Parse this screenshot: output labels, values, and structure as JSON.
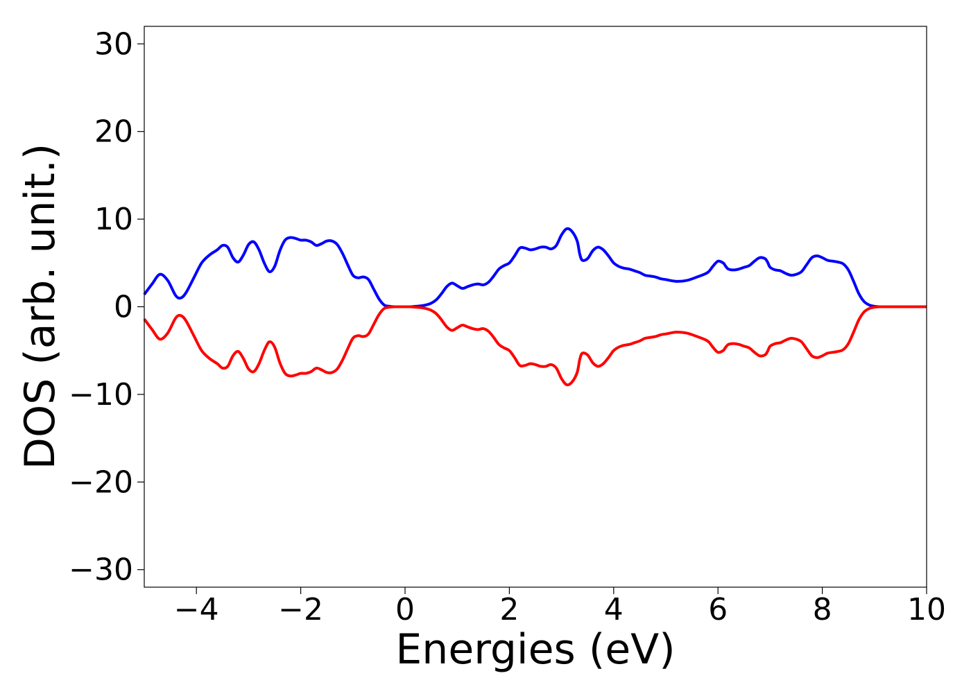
{
  "chart_data": {
    "type": "line",
    "title": "",
    "xlabel": "Energies (eV)",
    "ylabel": "DOS (arb. unit.)",
    "xlim": [
      -5,
      10
    ],
    "ylim": [
      -32,
      32
    ],
    "x_ticks": [
      -4,
      -2,
      0,
      2,
      4,
      6,
      8,
      10
    ],
    "x_tick_labels": [
      "−4",
      "−2",
      "0",
      "2",
      "4",
      "6",
      "8",
      "10"
    ],
    "y_ticks": [
      30,
      20,
      10,
      0,
      -10,
      -20,
      -30
    ],
    "y_tick_labels": [
      "30",
      "20",
      "10",
      "0",
      "−10",
      "−20",
      "−30"
    ],
    "grid": false,
    "legend": "none",
    "x": [
      -5.0,
      -4.85,
      -4.7,
      -4.55,
      -4.4,
      -4.3,
      -4.2,
      -4.05,
      -3.9,
      -3.75,
      -3.6,
      -3.5,
      -3.4,
      -3.3,
      -3.2,
      -3.1,
      -3.0,
      -2.9,
      -2.8,
      -2.7,
      -2.6,
      -2.5,
      -2.4,
      -2.3,
      -2.2,
      -2.1,
      -2.0,
      -1.9,
      -1.8,
      -1.7,
      -1.6,
      -1.5,
      -1.4,
      -1.3,
      -1.2,
      -1.1,
      -1.0,
      -0.9,
      -0.8,
      -0.7,
      -0.6,
      -0.5,
      -0.4,
      -0.3,
      -0.2,
      -0.1,
      0.0,
      0.1,
      0.2,
      0.3,
      0.4,
      0.5,
      0.6,
      0.7,
      0.8,
      0.9,
      1.0,
      1.1,
      1.2,
      1.3,
      1.4,
      1.5,
      1.6,
      1.7,
      1.8,
      1.9,
      2.0,
      2.1,
      2.2,
      2.3,
      2.4,
      2.5,
      2.6,
      2.7,
      2.8,
      2.9,
      3.0,
      3.1,
      3.2,
      3.3,
      3.35,
      3.4,
      3.5,
      3.6,
      3.7,
      3.8,
      3.9,
      4.0,
      4.1,
      4.2,
      4.3,
      4.4,
      4.5,
      4.6,
      4.7,
      4.8,
      4.9,
      5.0,
      5.2,
      5.4,
      5.6,
      5.8,
      5.9,
      6.0,
      6.1,
      6.15,
      6.2,
      6.3,
      6.4,
      6.5,
      6.6,
      6.7,
      6.8,
      6.9,
      6.95,
      7.0,
      7.1,
      7.2,
      7.3,
      7.4,
      7.5,
      7.6,
      7.7,
      7.8,
      7.9,
      8.0,
      8.1,
      8.2,
      8.3,
      8.4,
      8.5,
      8.6,
      8.7,
      8.8,
      8.9,
      9.0,
      9.1,
      9.3,
      9.6,
      10.0
    ],
    "series": [
      {
        "color": "#0000ff",
        "values": [
          1.4,
          2.6,
          3.7,
          3.0,
          1.3,
          1.0,
          1.6,
          3.3,
          5.0,
          5.9,
          6.5,
          7.0,
          6.8,
          5.6,
          5.1,
          5.9,
          7.1,
          7.4,
          6.5,
          5.0,
          4.0,
          4.6,
          6.4,
          7.6,
          7.9,
          7.8,
          7.6,
          7.6,
          7.4,
          7.0,
          7.2,
          7.5,
          7.5,
          7.1,
          6.1,
          4.8,
          3.6,
          3.3,
          3.4,
          3.1,
          2.0,
          0.9,
          0.2,
          0.05,
          0.0,
          0.0,
          0.0,
          0.0,
          0.05,
          0.1,
          0.2,
          0.4,
          0.8,
          1.5,
          2.3,
          2.7,
          2.4,
          2.1,
          2.3,
          2.5,
          2.6,
          2.5,
          2.8,
          3.5,
          4.3,
          4.7,
          5.0,
          5.8,
          6.7,
          6.7,
          6.5,
          6.6,
          6.8,
          6.8,
          6.6,
          7.0,
          8.2,
          8.9,
          8.6,
          7.5,
          6.0,
          5.3,
          5.5,
          6.4,
          6.8,
          6.5,
          5.8,
          5.0,
          4.6,
          4.4,
          4.3,
          4.1,
          3.9,
          3.6,
          3.5,
          3.4,
          3.2,
          3.1,
          2.9,
          3.0,
          3.4,
          3.9,
          4.6,
          5.2,
          5.0,
          4.6,
          4.3,
          4.2,
          4.3,
          4.5,
          4.7,
          5.2,
          5.6,
          5.5,
          5.1,
          4.5,
          4.2,
          4.1,
          3.8,
          3.6,
          3.7,
          4.0,
          4.8,
          5.6,
          5.8,
          5.6,
          5.3,
          5.2,
          5.1,
          4.9,
          4.2,
          2.9,
          1.5,
          0.6,
          0.2,
          0.05,
          0.0,
          0.0,
          0.0,
          0.0
        ]
      },
      {
        "color": "#ff0000",
        "values": [
          -1.4,
          -2.6,
          -3.7,
          -3.0,
          -1.3,
          -1.0,
          -1.6,
          -3.3,
          -5.0,
          -5.9,
          -6.5,
          -7.0,
          -6.8,
          -5.6,
          -5.1,
          -5.9,
          -7.1,
          -7.4,
          -6.5,
          -5.0,
          -4.0,
          -4.6,
          -6.4,
          -7.6,
          -7.9,
          -7.8,
          -7.6,
          -7.6,
          -7.4,
          -7.0,
          -7.2,
          -7.5,
          -7.5,
          -7.1,
          -6.1,
          -4.8,
          -3.6,
          -3.3,
          -3.4,
          -3.1,
          -2.0,
          -0.9,
          -0.2,
          -0.05,
          0.0,
          0.0,
          0.0,
          0.0,
          -0.05,
          -0.1,
          -0.2,
          -0.4,
          -0.8,
          -1.5,
          -2.3,
          -2.7,
          -2.4,
          -2.1,
          -2.3,
          -2.5,
          -2.6,
          -2.5,
          -2.8,
          -3.5,
          -4.3,
          -4.7,
          -5.0,
          -5.8,
          -6.7,
          -6.7,
          -6.5,
          -6.6,
          -6.8,
          -6.8,
          -6.6,
          -7.0,
          -8.2,
          -8.9,
          -8.6,
          -7.5,
          -6.0,
          -5.3,
          -5.5,
          -6.4,
          -6.8,
          -6.5,
          -5.8,
          -5.0,
          -4.6,
          -4.4,
          -4.3,
          -4.1,
          -3.9,
          -3.6,
          -3.5,
          -3.4,
          -3.2,
          -3.1,
          -2.9,
          -3.0,
          -3.4,
          -3.9,
          -4.6,
          -5.2,
          -5.0,
          -4.6,
          -4.3,
          -4.2,
          -4.3,
          -4.5,
          -4.7,
          -5.2,
          -5.6,
          -5.5,
          -5.1,
          -4.5,
          -4.2,
          -4.1,
          -3.8,
          -3.6,
          -3.7,
          -4.0,
          -4.8,
          -5.6,
          -5.8,
          -5.6,
          -5.3,
          -5.2,
          -5.1,
          -4.9,
          -4.2,
          -2.9,
          -1.5,
          -0.6,
          -0.2,
          -0.05,
          0.0,
          0.0,
          0.0,
          0.0
        ]
      }
    ]
  }
}
